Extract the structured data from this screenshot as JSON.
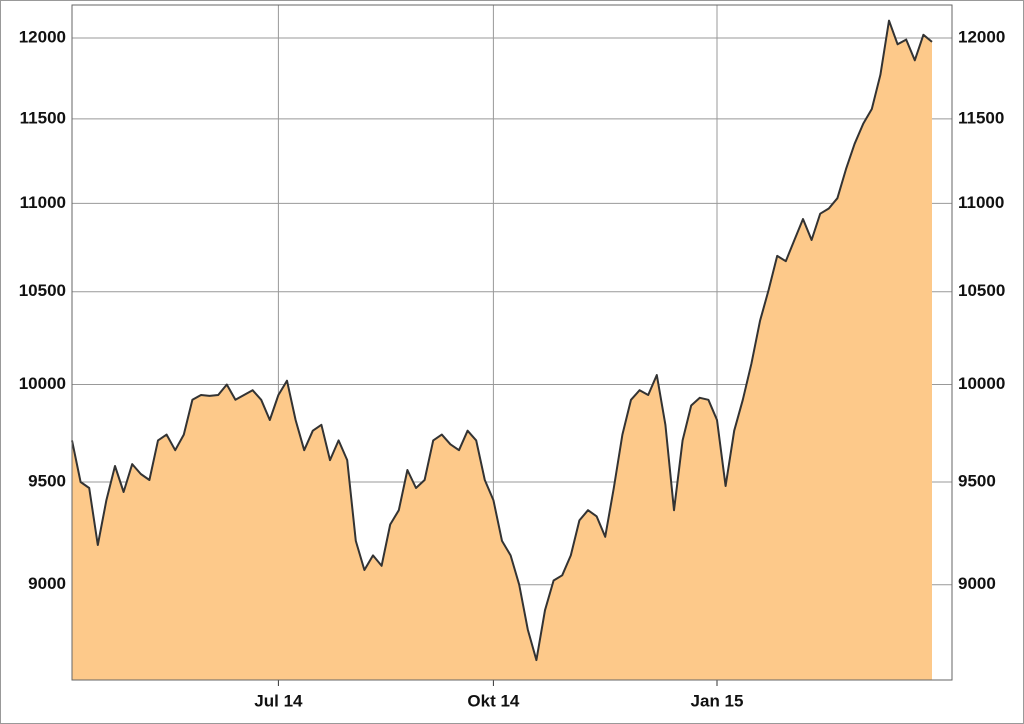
{
  "chart_data": {
    "type": "area",
    "categories": [
      null,
      null,
      null,
      null,
      null,
      null,
      null,
      null,
      null,
      null,
      null,
      null,
      null,
      null,
      null,
      null,
      null,
      null,
      null,
      null,
      null,
      null,
      null,
      null,
      "Jul 14",
      null,
      null,
      null,
      null,
      null,
      null,
      null,
      null,
      null,
      null,
      null,
      null,
      null,
      null,
      null,
      null,
      null,
      null,
      null,
      null,
      null,
      null,
      null,
      null,
      "Okt 14",
      null,
      null,
      null,
      null,
      null,
      null,
      null,
      null,
      null,
      null,
      null,
      null,
      null,
      null,
      null,
      null,
      null,
      null,
      null,
      null,
      null,
      null,
      null,
      null,
      null,
      "Jan 15",
      null,
      null,
      null,
      null,
      null,
      null,
      null,
      null,
      null,
      null,
      null,
      null,
      null,
      null,
      null,
      null,
      null,
      null,
      null,
      null,
      null,
      null,
      null,
      null,
      null
    ],
    "values": [
      9710,
      9500,
      9470,
      9190,
      9410,
      9580,
      9450,
      9590,
      9540,
      9510,
      9710,
      9740,
      9660,
      9740,
      9920,
      9945,
      9940,
      9945,
      10000,
      9920,
      9945,
      9970,
      9920,
      9815,
      9945,
      10020,
      9815,
      9660,
      9760,
      9790,
      9610,
      9710,
      9610,
      9210,
      9070,
      9140,
      9090,
      9290,
      9360,
      9560,
      9470,
      9510,
      9710,
      9740,
      9690,
      9660,
      9760,
      9710,
      9510,
      9410,
      9210,
      9140,
      9000,
      8790,
      8650,
      8880,
      9020,
      9045,
      9140,
      9310,
      9360,
      9330,
      9230,
      9470,
      9740,
      9920,
      9970,
      9945,
      10050,
      9790,
      9360,
      9710,
      9890,
      9930,
      9920,
      9815,
      9480,
      9760,
      9920,
      10110,
      10340,
      10510,
      10700,
      10670,
      10790,
      10910,
      10790,
      10940,
      10970,
      11030,
      11200,
      11350,
      11470,
      11560,
      11770,
      12110,
      11960,
      11990,
      11860,
      12020,
      11975
    ],
    "color": "#fdc98a",
    "line_color": "#333333",
    "ylim": [
      8560,
      12210
    ],
    "yticks": [
      9000,
      9500,
      10000,
      10500,
      11000,
      11500,
      12000
    ],
    "log_scale": true,
    "grid": true
  }
}
